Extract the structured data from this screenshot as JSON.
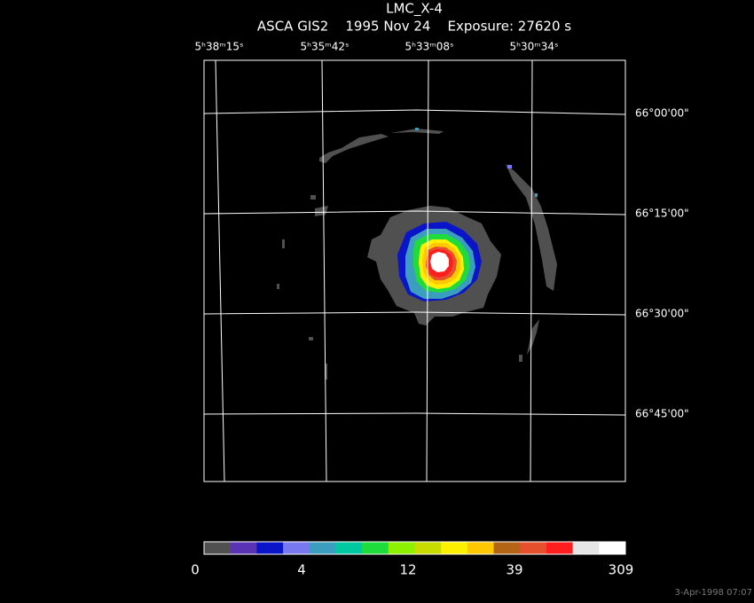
{
  "title": "LMC_X-4",
  "subtitle": "ASCA GIS2    1995 Nov 24    Exposure: 27620 s",
  "ra_labels": [
    "5ʰ38ᵐ15ˢ",
    "5ʰ35ᵐ42ˢ",
    "5ʰ33ᵐ08ˢ",
    "5ʰ30ᵐ34ˢ"
  ],
  "dec_labels": [
    "66°00'00\"",
    "66°15'00\"",
    "66°30'00\"",
    "66°45'00\""
  ],
  "colorbar": {
    "colors": [
      "#505050",
      "#5a32b4",
      "#0a14c8",
      "#7878f0",
      "#3c9ebe",
      "#00c8a0",
      "#1edc3c",
      "#8cf000",
      "#c8dc00",
      "#fff000",
      "#ffc800",
      "#b46414",
      "#e6502d",
      "#ff1e1e",
      "#e6e6e6",
      "#ffffff"
    ],
    "labels": [
      "0",
      "4",
      "12",
      "39",
      "309"
    ]
  },
  "timestamp": "3-Apr-1998 07:07"
}
